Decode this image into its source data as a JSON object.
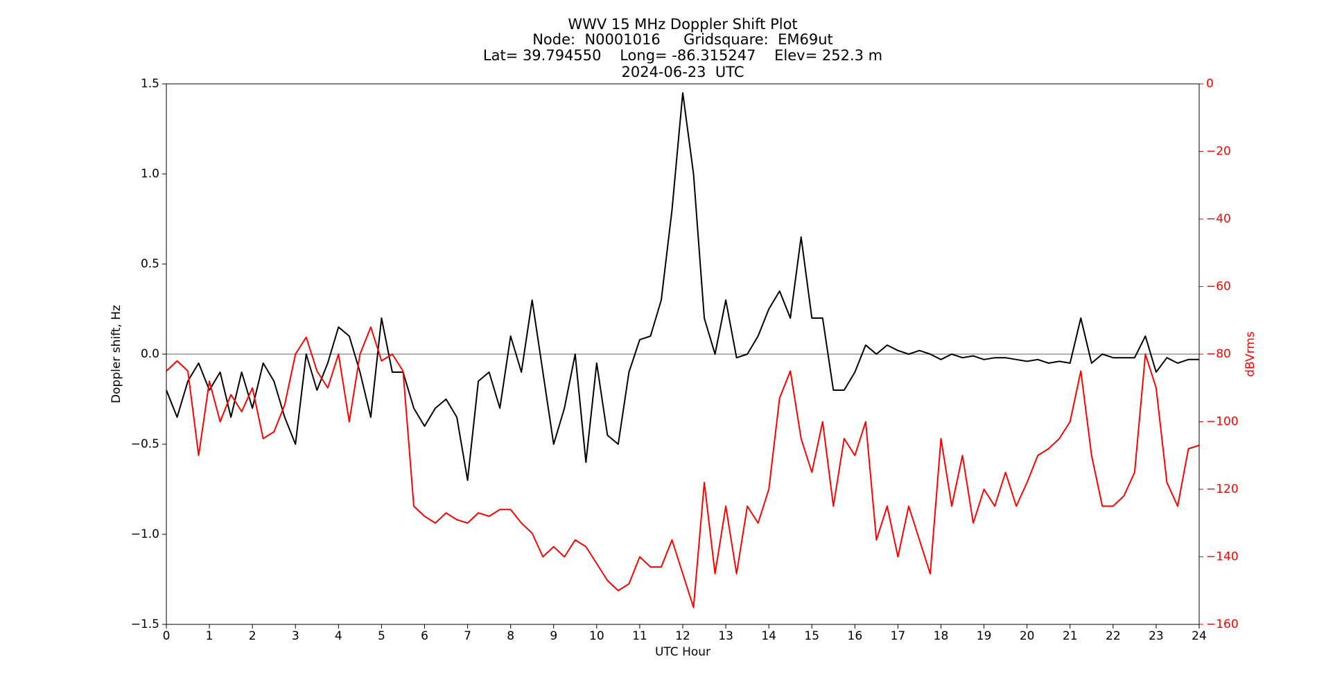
{
  "chart_data": {
    "type": "line",
    "title": [
      "WWV 15 MHz Doppler Shift Plot",
      "Node:  N0001016     Gridsquare:  EM69ut",
      "Lat= 39.794550    Long= -86.315247    Elev= 252.3 m",
      "2024-06-23  UTC"
    ],
    "x_label": "UTC Hour",
    "y_label": "Doppler shift, Hz",
    "y2_label": "dBVrms",
    "x": [
      0,
      0.25,
      0.5,
      0.75,
      1,
      1.25,
      1.5,
      1.75,
      2,
      2.25,
      2.5,
      2.75,
      3,
      3.25,
      3.5,
      3.75,
      4,
      4.25,
      4.5,
      4.75,
      5,
      5.25,
      5.5,
      5.75,
      6,
      6.25,
      6.5,
      6.75,
      7,
      7.25,
      7.5,
      7.75,
      8,
      8.25,
      8.5,
      8.75,
      9,
      9.25,
      9.5,
      9.75,
      10,
      10.25,
      10.5,
      10.75,
      11,
      11.25,
      11.5,
      11.75,
      12,
      12.25,
      12.5,
      12.75,
      13,
      13.25,
      13.5,
      13.75,
      14,
      14.25,
      14.5,
      14.75,
      15,
      15.25,
      15.5,
      15.75,
      16,
      16.25,
      16.5,
      16.75,
      17,
      17.25,
      17.5,
      17.75,
      18,
      18.25,
      18.5,
      18.75,
      19,
      19.25,
      19.5,
      19.75,
      20,
      20.25,
      20.5,
      20.75,
      21,
      21.25,
      21.5,
      21.75,
      22,
      22.25,
      22.5,
      22.75,
      23,
      23.25,
      23.5,
      23.75,
      24
    ],
    "series": [
      {
        "name": "Doppler shift",
        "color": "#000000",
        "values": [
          -0.2,
          -0.35,
          -0.15,
          -0.05,
          -0.2,
          -0.1,
          -0.35,
          -0.1,
          -0.3,
          -0.05,
          -0.15,
          -0.35,
          -0.5,
          0.0,
          -0.2,
          -0.05,
          0.15,
          0.1,
          -0.1,
          -0.35,
          0.2,
          -0.1,
          -0.1,
          -0.3,
          -0.4,
          -0.3,
          -0.25,
          -0.35,
          -0.7,
          -0.15,
          -0.1,
          -0.3,
          0.1,
          -0.1,
          0.3,
          -0.1,
          -0.5,
          -0.3,
          0.0,
          -0.6,
          -0.05,
          -0.45,
          -0.5,
          -0.1,
          0.08,
          0.1,
          0.3,
          0.8,
          1.45,
          1.0,
          0.2,
          0.0,
          0.3,
          -0.02,
          0.0,
          0.1,
          0.25,
          0.35,
          0.2,
          0.65,
          0.2,
          0.2,
          -0.2,
          -0.2,
          -0.1,
          0.05,
          0.0,
          0.05,
          0.02,
          0.0,
          0.02,
          0.0,
          -0.03,
          0.0,
          -0.02,
          -0.01,
          -0.03,
          -0.02,
          -0.02,
          -0.03,
          -0.04,
          -0.03,
          -0.05,
          -0.04,
          -0.05,
          0.2,
          -0.05,
          0.0,
          -0.02,
          -0.02,
          -0.02,
          0.1,
          -0.1,
          -0.02,
          -0.05,
          -0.03,
          -0.03
        ]
      },
      {
        "name": "dBVrms",
        "color": "#ff0000",
        "axis": "y2",
        "values": [
          -85,
          -82,
          -85,
          -110,
          -88,
          -100,
          -92,
          -97,
          -90,
          -105,
          -103,
          -95,
          -80,
          -75,
          -85,
          -90,
          -80,
          -100,
          -80,
          -72,
          -82,
          -80,
          -85,
          -125,
          -128,
          -130,
          -127,
          -129,
          -130,
          -127,
          -128,
          -126,
          -126,
          -130,
          -133,
          -140,
          -137,
          -140,
          -135,
          -137,
          -142,
          -147,
          -150,
          -148,
          -140,
          -143,
          -143,
          -135,
          -145,
          -155,
          -118,
          -145,
          -125,
          -145,
          -125,
          -130,
          -120,
          -93,
          -85,
          -105,
          -115,
          -100,
          -125,
          -105,
          -110,
          -100,
          -135,
          -125,
          -140,
          -125,
          -135,
          -145,
          -105,
          -125,
          -110,
          -130,
          -120,
          -125,
          -115,
          -125,
          -118,
          -110,
          -108,
          -105,
          -100,
          -85,
          -110,
          -125,
          -125,
          -122,
          -115,
          -80,
          -90,
          -118,
          -125,
          -108,
          -107
        ]
      }
    ],
    "hline": 0,
    "xlim": [
      0,
      24
    ],
    "xticks": [
      0,
      1,
      2,
      3,
      4,
      5,
      6,
      7,
      8,
      9,
      10,
      11,
      12,
      13,
      14,
      15,
      16,
      17,
      18,
      19,
      20,
      21,
      22,
      23,
      24
    ],
    "ylim": [
      -1.5,
      1.5
    ],
    "yticks": [
      {
        "value": -1.5,
        "label": "−1.5"
      },
      {
        "value": -1.0,
        "label": "−1.0"
      },
      {
        "value": -0.5,
        "label": "−0.5"
      },
      {
        "value": 0,
        "label": "0.0"
      },
      {
        "value": 0.5,
        "label": "0.5"
      },
      {
        "value": 1.0,
        "label": "1.0"
      },
      {
        "value": 1.5,
        "label": "1.5"
      }
    ],
    "y2lim": [
      -160,
      0
    ],
    "y2ticks": [
      {
        "value": -160,
        "label": "−160"
      },
      {
        "value": -140,
        "label": "−140"
      },
      {
        "value": -120,
        "label": "−120"
      },
      {
        "value": -100,
        "label": "−100"
      },
      {
        "value": -80,
        "label": "−80"
      },
      {
        "value": -60,
        "label": "−60"
      },
      {
        "value": -40,
        "label": "−40"
      },
      {
        "value": -20,
        "label": "−20"
      },
      0
    ]
  }
}
